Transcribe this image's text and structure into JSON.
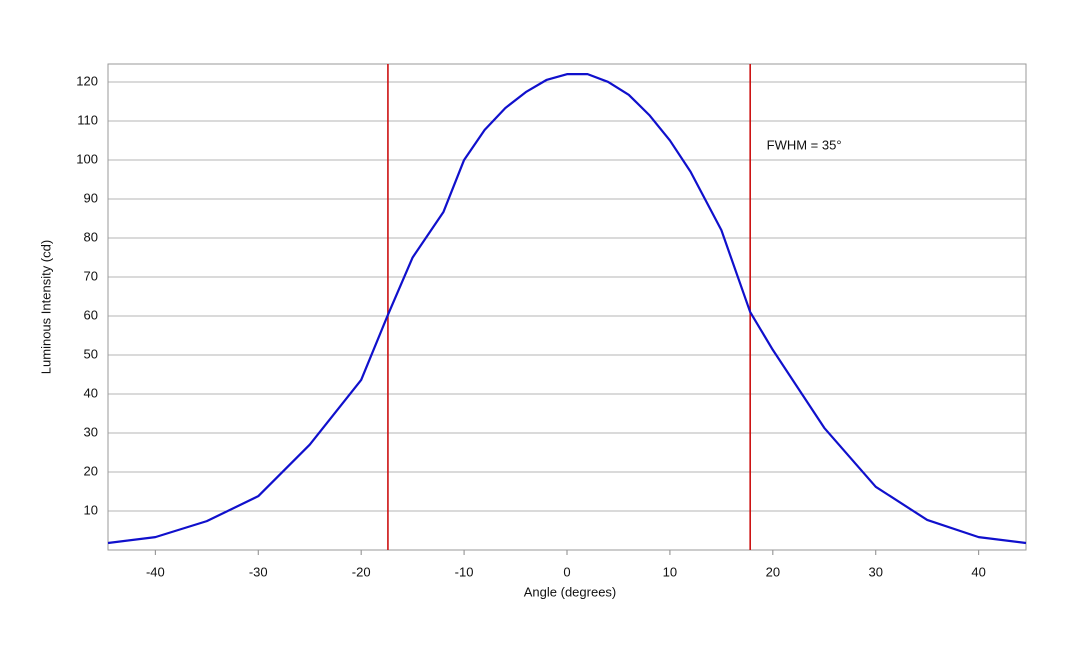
{
  "chart_data": {
    "type": "line",
    "x_label": "Angle (degrees)",
    "y_label": "Luminous Intensity (cd)",
    "x": [
      -44.6,
      -40,
      -35,
      -30,
      -25,
      -20,
      -17.4,
      -15,
      -12,
      -10,
      -8,
      -6,
      -4,
      -2,
      0,
      2,
      4,
      6,
      8,
      10,
      12,
      15,
      17.8,
      20,
      25,
      30,
      35,
      40,
      44.6
    ],
    "series": [
      {
        "color": "#1010cc",
        "values": [
          1.8,
          3.3,
          7.4,
          13.8,
          27,
          43.6,
          60.3,
          75,
          86.7,
          100,
          107.7,
          113.3,
          117.4,
          120.5,
          122,
          122,
          120,
          116.7,
          111.5,
          105,
          97,
          82,
          61,
          51.3,
          31.3,
          16.2,
          7.7,
          3.3,
          1.8
        ]
      }
    ],
    "reference_lines": [
      {
        "x": -17.4,
        "color": "#cc1111"
      },
      {
        "x": 17.8,
        "color": "#cc1111"
      }
    ],
    "annotation": {
      "text": "FWHM = 35°",
      "x": 19.4,
      "y": 103.5
    },
    "xlim": [
      -44.6,
      44.6
    ],
    "ylim": [
      0,
      124.6
    ],
    "xticks": [
      -40,
      -30,
      -20,
      -10,
      0,
      10,
      20,
      30,
      40
    ],
    "yticks": [
      10,
      20,
      30,
      40,
      50,
      60,
      70,
      80,
      90,
      100,
      110,
      120
    ],
    "grid": true
  }
}
